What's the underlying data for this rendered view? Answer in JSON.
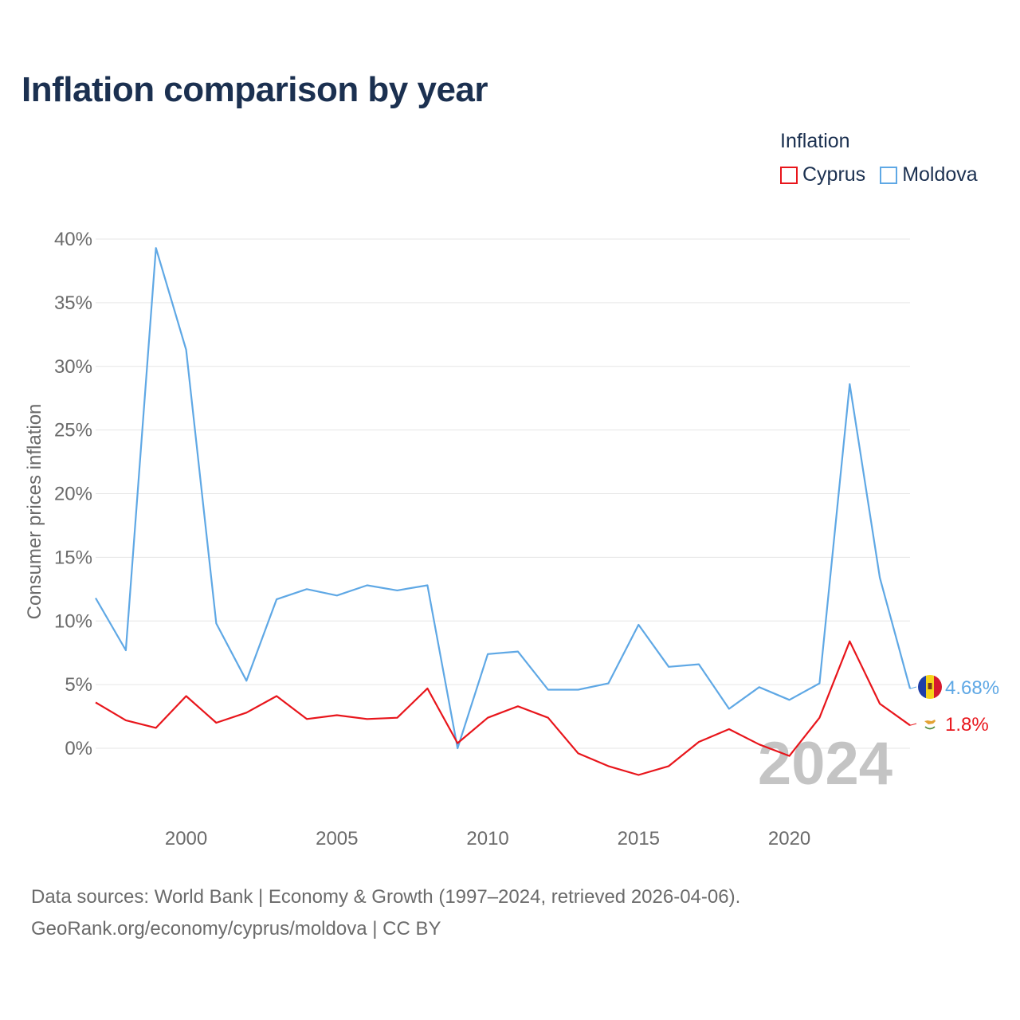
{
  "title": "Inflation comparison by year",
  "legend": {
    "title": "Inflation",
    "items": [
      {
        "label": "Cyprus",
        "color": "#e8151b"
      },
      {
        "label": "Moldova",
        "color": "#5fa8e5"
      }
    ]
  },
  "sources": {
    "line1": "Data sources: World Bank | Economy & Growth (1997–2024, retrieved 2026-04-06).",
    "line2": "GeoRank.org/economy/cyprus/moldova | CC BY"
  },
  "chart_data": {
    "type": "line",
    "title": "Inflation comparison by year",
    "xlabel": "",
    "ylabel": "Consumer prices inflation",
    "xlim": [
      1997,
      2024
    ],
    "ylim": [
      -5,
      40
    ],
    "yticks": [
      0,
      5,
      10,
      15,
      20,
      25,
      30,
      35,
      40
    ],
    "ytick_labels": [
      "0%",
      "5%",
      "10%",
      "15%",
      "20%",
      "25%",
      "30%",
      "35%",
      "40%"
    ],
    "xticks": [
      2000,
      2005,
      2010,
      2015,
      2020
    ],
    "xtick_labels": [
      "2000",
      "2005",
      "2010",
      "2015",
      "2020"
    ],
    "year_watermark": "2024",
    "x": [
      1997,
      1998,
      1999,
      2000,
      2001,
      2002,
      2003,
      2004,
      2005,
      2006,
      2007,
      2008,
      2009,
      2010,
      2011,
      2012,
      2013,
      2014,
      2015,
      2016,
      2017,
      2018,
      2019,
      2020,
      2021,
      2022,
      2023,
      2024
    ],
    "series": [
      {
        "name": "Moldova",
        "color": "#5fa8e5",
        "end_label": "4.68%",
        "values": [
          11.8,
          7.7,
          39.3,
          31.3,
          9.8,
          5.3,
          11.7,
          12.5,
          12.0,
          12.8,
          12.4,
          12.8,
          0.0,
          7.4,
          7.6,
          4.6,
          4.6,
          5.1,
          9.7,
          6.4,
          6.6,
          3.1,
          4.8,
          3.8,
          5.1,
          28.6,
          13.4,
          4.68
        ]
      },
      {
        "name": "Cyprus",
        "color": "#e8151b",
        "end_label": "1.8%",
        "values": [
          3.6,
          2.2,
          1.6,
          4.1,
          2.0,
          2.8,
          4.1,
          2.3,
          2.6,
          2.3,
          2.4,
          4.7,
          0.4,
          2.4,
          3.3,
          2.4,
          -0.4,
          -1.4,
          -2.1,
          -1.4,
          0.5,
          1.5,
          0.3,
          -0.6,
          2.4,
          8.4,
          3.5,
          1.8
        ]
      }
    ]
  }
}
